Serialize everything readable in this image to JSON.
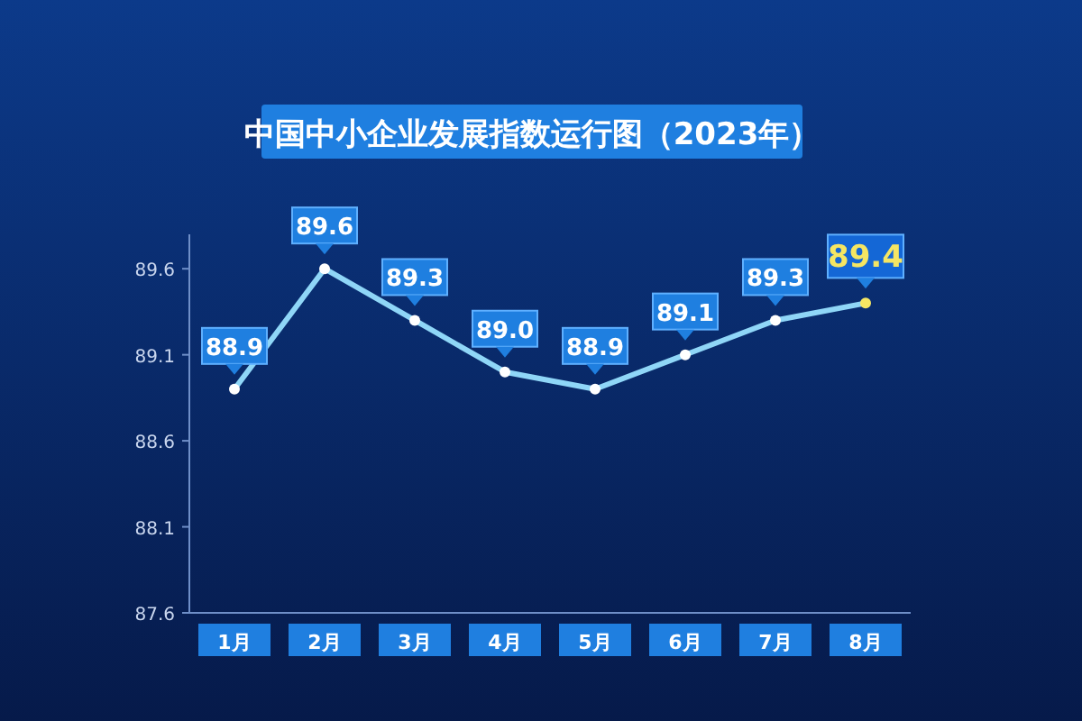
{
  "chart_data": {
    "type": "line",
    "title": "中国中小企业发展指数运行图（2023年）",
    "categories": [
      "1月",
      "2月",
      "3月",
      "4月",
      "5月",
      "6月",
      "7月",
      "8月"
    ],
    "series": [
      {
        "color": "#8fd6f7",
        "colors": [
          "#ffffff",
          "#ffffff",
          "#ffffff",
          "#ffffff",
          "#ffffff",
          "#ffffff",
          "#ffffff",
          "#f5e663"
        ],
        "values": [
          88.9,
          89.6,
          89.3,
          89.0,
          88.9,
          89.1,
          89.3,
          89.4
        ]
      }
    ],
    "ylim": [
      87.6,
      89.8
    ],
    "yticks": [
      87.6,
      88.1,
      88.6,
      89.1,
      89.6
    ],
    "value_labels": [
      "88.9",
      "89.6",
      "89.3",
      "89.0",
      "88.9",
      "89.1",
      "89.3",
      "89.4"
    ],
    "marker": "circle",
    "line_style": "solid"
  }
}
